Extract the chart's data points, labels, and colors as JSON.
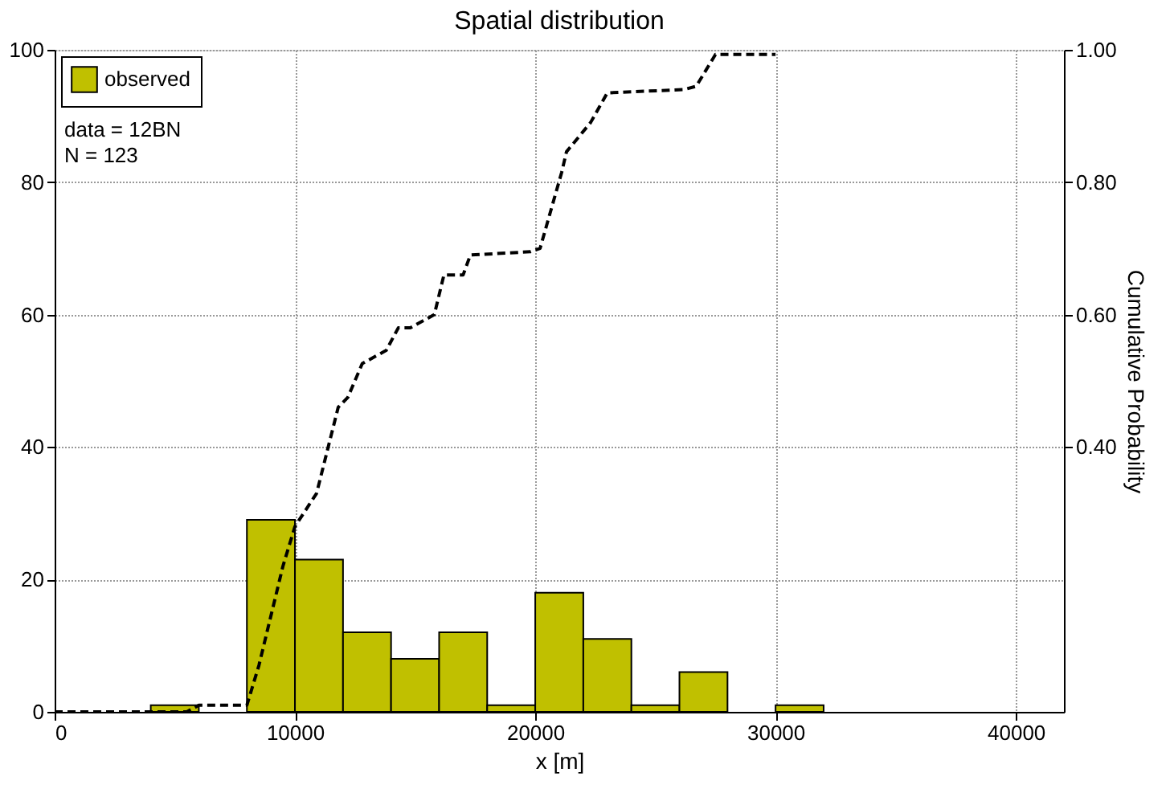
{
  "chart_data": {
    "type": "histogram",
    "title": "Spatial distribution",
    "xlabel": "x [m]",
    "y2label": "Cumulative Probability",
    "bins": [
      4000,
      6000,
      8000,
      10000,
      12000,
      14000,
      16000,
      18000,
      20000,
      22000,
      24000,
      26000,
      28000,
      30000,
      32000
    ],
    "series": [
      {
        "name": "observed",
        "color": "#c0c000",
        "values": [
          1,
          0,
          29,
          23,
          12,
          8,
          12,
          1,
          18,
          11,
          1,
          6,
          0,
          1
        ]
      },
      {
        "type": "line",
        "axis": "y2",
        "color": "#000000",
        "line_style": "dashed",
        "x": [
          0,
          5500,
          6000,
          8000,
          8500,
          9500,
          10000,
          10900,
          11800,
          12200,
          12800,
          13800,
          14300,
          14800,
          15800,
          16200,
          17000,
          17300,
          19800,
          20200,
          21100,
          21300,
          22300,
          23000,
          26200,
          26700,
          27500,
          30000
        ],
        "values": [
          0,
          0.0,
          0.01,
          0.01,
          0.07,
          0.22,
          0.28,
          0.33,
          0.46,
          0.475,
          0.526,
          0.546,
          0.58,
          0.58,
          0.6,
          0.66,
          0.66,
          0.69,
          0.695,
          0.7,
          0.815,
          0.846,
          0.89,
          0.935,
          0.94,
          0.945,
          0.993,
          0.993
        ]
      }
    ],
    "xlim": [
      0,
      42000
    ],
    "xticks": [
      0,
      10000,
      20000,
      30000,
      40000
    ],
    "ylim": [
      0,
      100
    ],
    "yticks": [
      0,
      20,
      40,
      60,
      80,
      100
    ],
    "y2lim": [
      0,
      1
    ],
    "y2ticks": [
      {
        "value": 0.4,
        "label": "0.40"
      },
      {
        "value": 0.6,
        "label": "0.60"
      },
      {
        "value": 0.8,
        "label": "0.80"
      },
      {
        "value": 1.0,
        "label": "1.00"
      }
    ],
    "grid": true,
    "legend": "top left",
    "annotations": [
      "data = 12BN",
      "N = 123"
    ]
  }
}
